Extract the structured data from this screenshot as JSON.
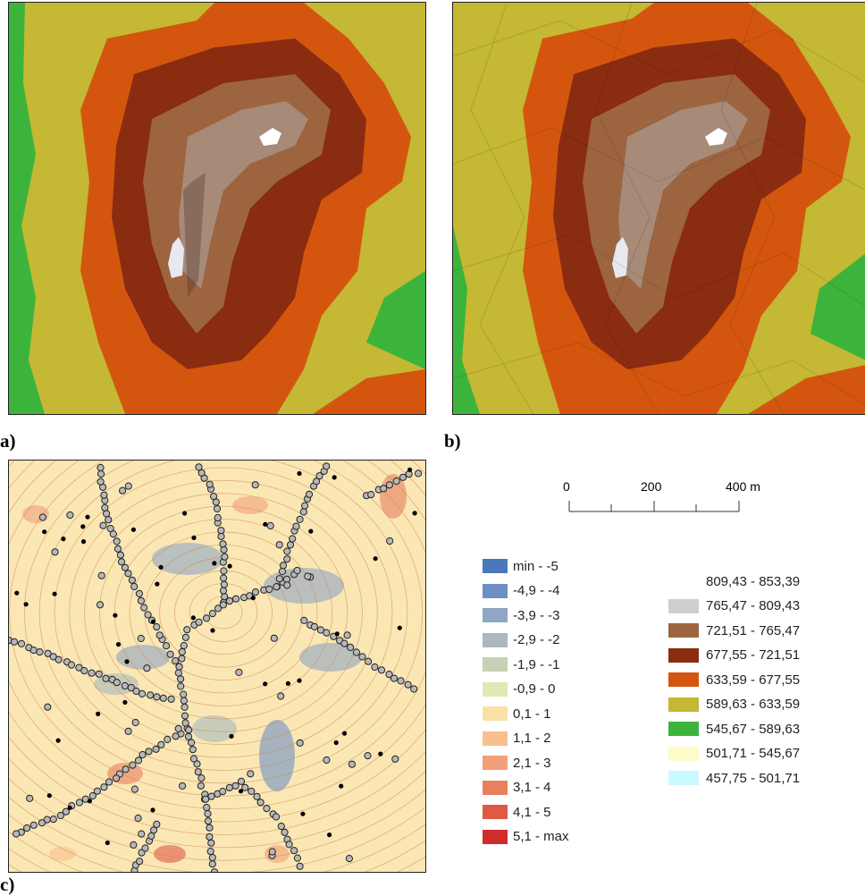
{
  "panels": [
    {
      "label": "a)"
    },
    {
      "label": "b)"
    },
    {
      "label": "c)"
    }
  ],
  "scalebar": {
    "ticks": [
      "0",
      "200",
      "400 m"
    ]
  },
  "difference_legend": [
    {
      "label": "min - -5",
      "color": "#4a78b8"
    },
    {
      "label": "-4,9 - -4",
      "color": "#6f8fc4"
    },
    {
      "label": "-3,9 - -3",
      "color": "#8fa6c4"
    },
    {
      "label": "-2,9 - -2",
      "color": "#a9b9bd"
    },
    {
      "label": "-1,9 - -1",
      "color": "#c6d1b6"
    },
    {
      "label": "-0,9 - 0",
      "color": "#e2e8b4"
    },
    {
      "label": "0,1 - 1",
      "color": "#fbe1a8"
    },
    {
      "label": "1,1 - 2",
      "color": "#f8c08c"
    },
    {
      "label": "2,1 - 3",
      "color": "#f2a07a"
    },
    {
      "label": "3,1 - 4",
      "color": "#e8805e"
    },
    {
      "label": "4,1 - 5",
      "color": "#df5a44"
    },
    {
      "label": "5,1 - max",
      "color": "#d02c2c"
    }
  ],
  "elevation_legend": [
    {
      "label": "809,43 - 853,39",
      "color": "#ffffff"
    },
    {
      "label": "765,47 - 809,43",
      "color": "#cfcfcf"
    },
    {
      "label": "721,51 - 765,47",
      "color": "#9c6540"
    },
    {
      "label": "677,55 - 721,51",
      "color": "#8a2c10"
    },
    {
      "label": "633,59 - 677,55",
      "color": "#d4560e"
    },
    {
      "label": "589,63 - 633,59",
      "color": "#c4b834"
    },
    {
      "label": "545,67 - 589,63",
      "color": "#3cb43c"
    },
    {
      "label": "501,71 - 545,67",
      "color": "#fdfbc8"
    },
    {
      "label": "457,75 - 501,71",
      "color": "#c8faff"
    }
  ]
}
